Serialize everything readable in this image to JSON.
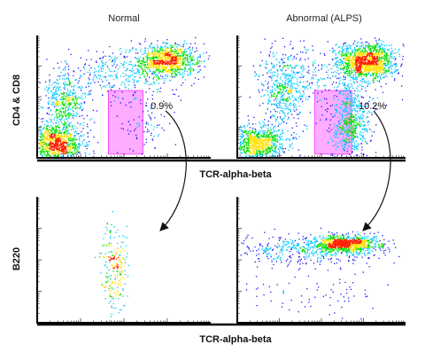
{
  "chart_data": {
    "type": "scatter",
    "subtype": "flow-cytometry-density-dot-plots",
    "columns": [
      "Normal",
      "Abnormal (ALPS)"
    ],
    "top_row": {
      "xlabel": "TCR-alpha-beta",
      "ylabel": "CD4 & CD8",
      "gate_color": "#ff66ff",
      "panels": [
        {
          "name": "Normal",
          "gate_percent": "0.9%",
          "populations": [
            {
              "label": "",
              "x": 0.1,
              "y": 0.12,
              "sx": 0.08,
              "sy": 0.08,
              "n": 1100
            },
            {
              "label": "",
              "x": 0.16,
              "y": 0.45,
              "sx": 0.06,
              "sy": 0.12,
              "n": 450
            },
            {
              "label": "",
              "x": 0.75,
              "y": 0.8,
              "sx": 0.09,
              "sy": 0.07,
              "n": 900
            },
            {
              "label": "",
              "x": 0.5,
              "y": 0.7,
              "sx": 0.18,
              "sy": 0.1,
              "n": 400
            },
            {
              "label": "",
              "x": 0.62,
              "y": 0.25,
              "sx": 0.07,
              "sy": 0.13,
              "n": 90
            }
          ]
        },
        {
          "name": "Abnormal (ALPS)",
          "gate_percent": "10.2%",
          "populations": [
            {
              "label": "",
              "x": 0.1,
              "y": 0.12,
              "sx": 0.09,
              "sy": 0.07,
              "n": 900
            },
            {
              "label": "",
              "x": 0.28,
              "y": 0.55,
              "sx": 0.07,
              "sy": 0.18,
              "n": 550
            },
            {
              "label": "",
              "x": 0.76,
              "y": 0.82,
              "sx": 0.09,
              "sy": 0.06,
              "n": 900
            },
            {
              "label": "",
              "x": 0.78,
              "y": 0.74,
              "sx": 0.08,
              "sy": 0.05,
              "n": 400
            },
            {
              "label": "",
              "x": 0.67,
              "y": 0.3,
              "sx": 0.06,
              "sy": 0.16,
              "n": 650
            },
            {
              "label": "",
              "x": 0.55,
              "y": 0.65,
              "sx": 0.2,
              "sy": 0.12,
              "n": 250
            }
          ]
        }
      ]
    },
    "bottom_row": {
      "xlabel": "TCR-alpha-beta",
      "ylabel": "B220",
      "panels": [
        {
          "name": "Normal",
          "populations": [
            {
              "label": "",
              "x": 0.44,
              "y": 0.45,
              "sx": 0.035,
              "sy": 0.18,
              "n": 230
            }
          ]
        },
        {
          "name": "Abnormal (ALPS)",
          "populations": [
            {
              "label": "",
              "x": 0.65,
              "y": 0.63,
              "sx": 0.1,
              "sy": 0.035,
              "n": 900
            },
            {
              "label": "",
              "x": 0.42,
              "y": 0.58,
              "sx": 0.22,
              "sy": 0.06,
              "n": 450
            },
            {
              "label": "",
              "x": 0.45,
              "y": 0.22,
              "sx": 0.22,
              "sy": 0.1,
              "n": 80
            }
          ]
        }
      ]
    },
    "colors": {
      "low": "#1a1aff",
      "mid1": "#00c8ff",
      "mid2": "#00e000",
      "mid3": "#ffe000",
      "high": "#ff2000"
    }
  }
}
